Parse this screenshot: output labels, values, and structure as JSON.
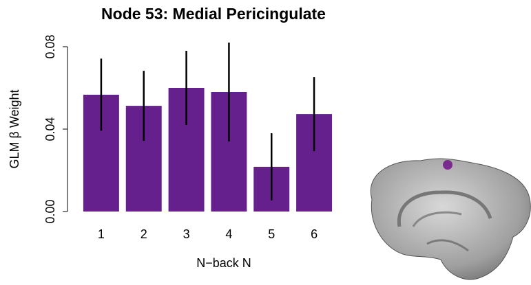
{
  "chart_data": {
    "type": "bar",
    "title": "Node 53: Medial Pericingulate",
    "xlabel": "N−back N",
    "ylabel": "GLM β Weight",
    "categories": [
      "1",
      "2",
      "3",
      "4",
      "5",
      "6"
    ],
    "values": [
      0.0567,
      0.0513,
      0.06,
      0.058,
      0.0217,
      0.0473
    ],
    "errors": [
      0.0175,
      0.017,
      0.018,
      0.024,
      0.0163,
      0.018
    ],
    "color": "#65208e",
    "ylim": [
      0,
      0.08
    ],
    "yticks": [
      {
        "value": 0,
        "label": "0.00"
      },
      {
        "value": 0.04,
        "label": "0.04"
      },
      {
        "value": 0.08,
        "label": "0.08"
      }
    ]
  }
}
